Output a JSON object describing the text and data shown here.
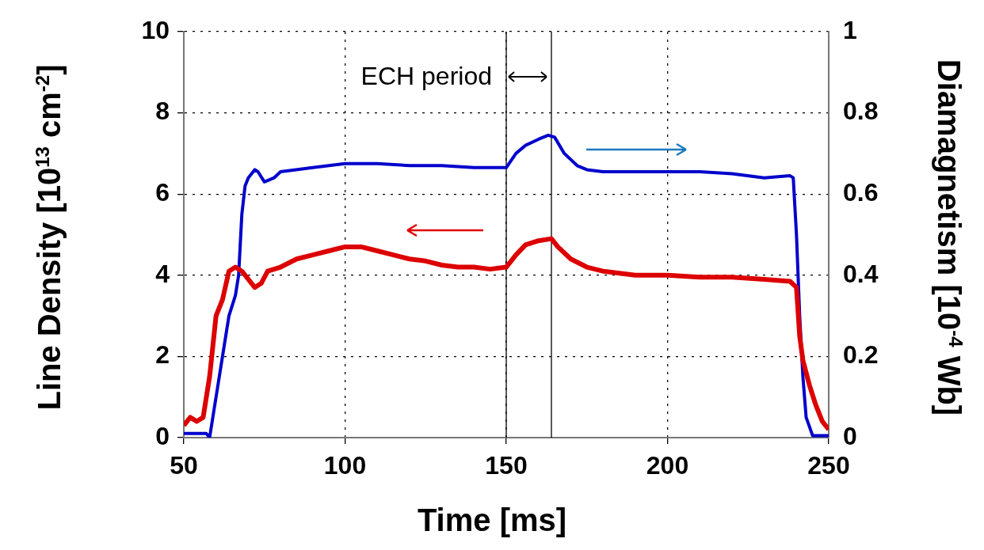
{
  "chart_data": {
    "type": "line",
    "xlabel": "Time [ms]",
    "ylabel": "Line Density [10$^{13}$ cm$^{-2}$]",
    "y2label": "Diamagnetism [10$^{-4}$ Wb]",
    "xlim": [
      50,
      250
    ],
    "xticks": [
      50,
      100,
      150,
      200,
      250
    ],
    "ylim": [
      0,
      10
    ],
    "yticks": [
      0,
      2,
      4,
      6,
      8,
      10
    ],
    "y2lim": [
      0,
      1
    ],
    "y2ticks": [
      0,
      0.2,
      0.4,
      0.6,
      0.8,
      1
    ],
    "grid": true,
    "legend": false,
    "marker": "none",
    "line_style": "solid",
    "ref_lines": [
      {
        "axis": "x",
        "value": 150,
        "color": "#000000"
      },
      {
        "axis": "x",
        "value": 164,
        "color": "#000000"
      }
    ],
    "annotations": [
      "ECH period"
    ],
    "series": [
      {
        "color": "#dd0000",
        "x": [
          50,
          52,
          54,
          56,
          58,
          60,
          62,
          64,
          66,
          68,
          70,
          72,
          74,
          76,
          80,
          85,
          90,
          95,
          100,
          105,
          110,
          115,
          120,
          125,
          130,
          135,
          140,
          145,
          150,
          153,
          156,
          160,
          164,
          166,
          170,
          175,
          180,
          190,
          200,
          210,
          220,
          230,
          238,
          240,
          241,
          242,
          244,
          246,
          248,
          250
        ],
        "values": [
          0.3,
          0.5,
          0.4,
          0.5,
          1.5,
          3.0,
          3.4,
          4.1,
          4.2,
          4.1,
          3.9,
          3.7,
          3.8,
          4.1,
          4.2,
          4.4,
          4.5,
          4.6,
          4.7,
          4.7,
          4.6,
          4.5,
          4.4,
          4.35,
          4.25,
          4.2,
          4.2,
          4.15,
          4.2,
          4.5,
          4.75,
          4.85,
          4.9,
          4.7,
          4.4,
          4.2,
          4.1,
          4.0,
          4.0,
          3.95,
          3.95,
          3.9,
          3.85,
          3.7,
          2.5,
          1.9,
          1.3,
          0.8,
          0.4,
          0.2
        ]
      },
      {
        "color": "#0000cc",
        "axis": "y2",
        "x": [
          50,
          57,
          58,
          60,
          62,
          64,
          66,
          67,
          68,
          69,
          70,
          72,
          73,
          75,
          78,
          80,
          90,
          100,
          110,
          120,
          130,
          140,
          150,
          153,
          156,
          160,
          163,
          165,
          168,
          172,
          175,
          180,
          190,
          200,
          210,
          220,
          230,
          238,
          239,
          240,
          241,
          242,
          243,
          245,
          250
        ],
        "values": [
          0.01,
          0.01,
          0.0,
          0.1,
          0.2,
          0.3,
          0.35,
          0.4,
          0.55,
          0.62,
          0.64,
          0.66,
          0.655,
          0.63,
          0.64,
          0.655,
          0.665,
          0.675,
          0.675,
          0.67,
          0.67,
          0.665,
          0.665,
          0.7,
          0.72,
          0.735,
          0.745,
          0.74,
          0.7,
          0.67,
          0.66,
          0.655,
          0.655,
          0.655,
          0.655,
          0.65,
          0.64,
          0.645,
          0.64,
          0.5,
          0.3,
          0.15,
          0.05,
          0.005,
          0.005
        ]
      }
    ]
  }
}
